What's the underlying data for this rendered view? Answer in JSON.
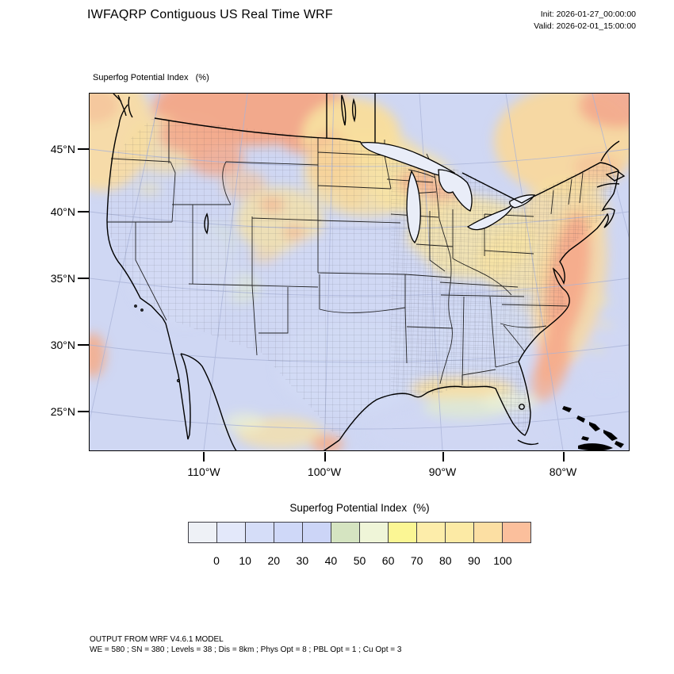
{
  "header": {
    "title": "IWFAQRP Contiguous US Real Time WRF",
    "init_label": "Init: 2026-01-27_00:00:00",
    "valid_label": "Valid: 2026-02-01_15:00:00"
  },
  "map": {
    "subtitle": "Superfog Potential Index   (%)",
    "y_axis": {
      "ticks": [
        "45°N",
        "40°N",
        "35°N",
        "30°N",
        "25°N"
      ]
    },
    "x_axis": {
      "ticks": [
        "110°W",
        "100°W",
        "90°W",
        "80°W"
      ]
    },
    "ocean_color": "#cfd7f3",
    "land_low_color": "#d4daf2"
  },
  "colorbar": {
    "title": "Superfog Potential Index  (%)",
    "tick_labels": [
      "0",
      "10",
      "20",
      "30",
      "40",
      "50",
      "60",
      "70",
      "80",
      "90",
      "100"
    ],
    "colors": [
      "#eef1f6",
      "#e3e8fa",
      "#d5ddf8",
      "#cfd8f8",
      "#ccd5f7",
      "#d5e4c1",
      "#eff5d8",
      "#fbf694",
      "#fdedaa",
      "#fceaa5",
      "#fcdfa3",
      "#fbbf9c"
    ],
    "range_min": 0,
    "range_max": 100,
    "units": "%"
  },
  "footer": {
    "line1": "OUTPUT FROM WRF V4.6.1 MODEL",
    "line2": "WE = 580 ; SN = 380 ; Levels = 38 ; Dis = 8km ; Phys Opt = 8 ; PBL Opt = 1 ; Cu Opt = 3"
  }
}
